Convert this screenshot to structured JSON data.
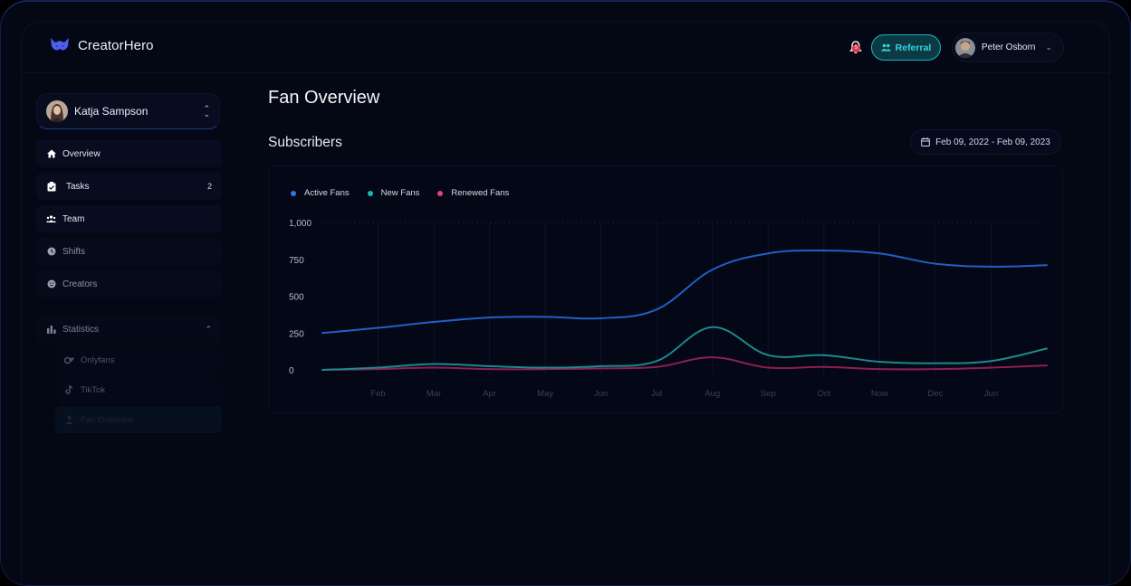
{
  "app": {
    "name": "CreatorHero"
  },
  "header": {
    "notifications_count": "5",
    "referral_label": "Referral",
    "user_name": "Peter Osborn"
  },
  "sidebar": {
    "creator_name": "Katja Sampson",
    "nav": [
      {
        "label": "Overview",
        "icon": "home-icon",
        "count": ""
      },
      {
        "label": "Tasks",
        "icon": "tasks-icon",
        "count": "2"
      },
      {
        "label": "Team",
        "icon": "team-icon",
        "count": ""
      },
      {
        "label": "Shifts",
        "icon": "clock-icon",
        "count": ""
      },
      {
        "label": "Creators",
        "icon": "creators-icon",
        "count": ""
      }
    ],
    "statistics": {
      "label": "Statistics",
      "expanded": true,
      "items": [
        {
          "label": "Onlyfans",
          "icon": "onlyfans-icon"
        },
        {
          "label": "TikTok",
          "icon": "tiktok-icon"
        },
        {
          "label": "Fan Overview",
          "icon": "user-icon"
        }
      ]
    }
  },
  "main": {
    "page_title": "Fan Overview",
    "section_title": "Subscribers",
    "date_range": "Feb 09, 2022 - Feb 09, 2023"
  },
  "colors": {
    "active_fans": "#2f6fd6",
    "new_fans": "#1f9c9c",
    "renewed_fans": "#c0306e",
    "accent": "#18b6c4"
  },
  "chart_data": {
    "type": "line",
    "title": "Subscribers",
    "x": [
      "",
      "Feb",
      "Mar",
      "Apr",
      "May",
      "Jun",
      "Jul",
      "Aug",
      "Sep",
      "Oct",
      "Now",
      "Dec",
      "Jun",
      ""
    ],
    "x_labels": [
      "Feb",
      "Mar",
      "Apr",
      "May",
      "Jun",
      "Jul",
      "Aug",
      "Sep",
      "Oct",
      "Now",
      "Dec",
      "Jun"
    ],
    "ylim": [
      0,
      1000
    ],
    "yticks": [
      "0",
      "250",
      "500",
      "750",
      "1,000"
    ],
    "grid": true,
    "legend_position": "top-left",
    "series": [
      {
        "name": "Active Fans",
        "values": [
          250,
          285,
          325,
          355,
          360,
          350,
          410,
          680,
          790,
          810,
          790,
          720,
          700,
          710
        ]
      },
      {
        "name": "New Fans",
        "values": [
          0,
          15,
          40,
          25,
          15,
          25,
          60,
          290,
          100,
          100,
          55,
          45,
          60,
          145
        ]
      },
      {
        "name": "Renewed Fans",
        "values": [
          0,
          5,
          15,
          5,
          5,
          10,
          20,
          85,
          15,
          20,
          5,
          5,
          15,
          30
        ]
      }
    ]
  }
}
